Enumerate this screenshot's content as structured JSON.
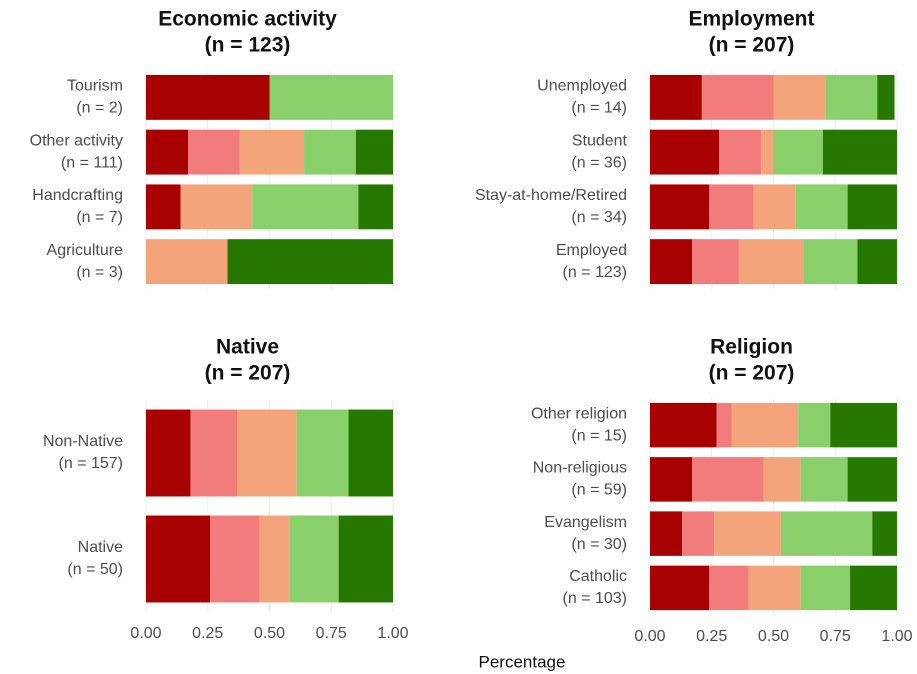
{
  "chart_data": [
    {
      "type": "bar",
      "orientation": "horizontal",
      "stacked": true,
      "title": "Economic activity",
      "subtitle": "(n = 123)",
      "categories": [
        "Tourism",
        "Other activity",
        "Handcrafting",
        "Agriculture"
      ],
      "category_counts": [
        "(n = 2)",
        "(n = 111)",
        "(n = 7)",
        "(n = 3)"
      ],
      "xlim": [
        0,
        1
      ],
      "series": [
        {
          "color": "#a80000",
          "values": [
            0.5,
            0.17,
            0.14,
            0
          ]
        },
        {
          "color": "#f27b7b",
          "values": [
            0,
            0.21,
            0,
            0
          ]
        },
        {
          "color": "#f4a47b",
          "values": [
            0,
            0.26,
            0.29,
            0.33
          ]
        },
        {
          "color": "#89cf6a",
          "values": [
            0.5,
            0.21,
            0.43,
            0
          ]
        },
        {
          "color": "#277800",
          "values": [
            0,
            0.15,
            0.14,
            0.67
          ]
        }
      ]
    },
    {
      "type": "bar",
      "orientation": "horizontal",
      "stacked": true,
      "title": "Employment",
      "subtitle": "(n = 207)",
      "categories": [
        "Unemployed",
        "Student",
        "Stay-at-home/Retired",
        "Employed"
      ],
      "category_counts": [
        "(n = 14)",
        "(n = 36)",
        "(n = 34)",
        "(n = 123)"
      ],
      "xlim": [
        0,
        1
      ],
      "series": [
        {
          "color": "#a80000",
          "values": [
            0.21,
            0.28,
            0.24,
            0.17
          ]
        },
        {
          "color": "#f27b7b",
          "values": [
            0.29,
            0.17,
            0.18,
            0.19
          ]
        },
        {
          "color": "#f4a47b",
          "values": [
            0.21,
            0.05,
            0.17,
            0.26
          ]
        },
        {
          "color": "#89cf6a",
          "values": [
            0.21,
            0.2,
            0.21,
            0.22
          ]
        },
        {
          "color": "#277800",
          "values": [
            0.07,
            0.3,
            0.2,
            0.16
          ]
        }
      ]
    },
    {
      "type": "bar",
      "orientation": "horizontal",
      "stacked": true,
      "title": "Native",
      "subtitle": "(n = 207)",
      "categories": [
        "Non-Native",
        "Native"
      ],
      "category_counts": [
        "(n = 157)",
        "(n = 50)"
      ],
      "xlim": [
        0,
        1
      ],
      "xticks": [
        {
          "value": 0,
          "label": "0.00"
        },
        {
          "value": 0.25,
          "label": "0.25"
        },
        {
          "value": 0.5,
          "label": "0.50"
        },
        {
          "value": 0.75,
          "label": "0.75"
        },
        {
          "value": 1,
          "label": "1.00"
        }
      ],
      "series": [
        {
          "color": "#a80000",
          "values": [
            0.18,
            0.26
          ]
        },
        {
          "color": "#f27b7b",
          "values": [
            0.19,
            0.2
          ]
        },
        {
          "color": "#f4a47b",
          "values": [
            0.24,
            0.12
          ]
        },
        {
          "color": "#89cf6a",
          "values": [
            0.21,
            0.2
          ]
        },
        {
          "color": "#277800",
          "values": [
            0.18,
            0.22
          ]
        }
      ]
    },
    {
      "type": "bar",
      "orientation": "horizontal",
      "stacked": true,
      "title": "Religion",
      "subtitle": "(n = 207)",
      "categories": [
        "Other religion",
        "Non-religious",
        "Evangelism",
        "Catholic"
      ],
      "category_counts": [
        "(n = 15)",
        "(n = 59)",
        "(n = 30)",
        "(n = 103)"
      ],
      "xlim": [
        0,
        1
      ],
      "xticks": [
        {
          "value": 0,
          "label": "0.00"
        },
        {
          "value": 0.25,
          "label": "0.25"
        },
        {
          "value": 0.5,
          "label": "0.50"
        },
        {
          "value": 0.75,
          "label": "0.75"
        },
        {
          "value": 1,
          "label": "1.00"
        }
      ],
      "series": [
        {
          "color": "#a80000",
          "values": [
            0.27,
            0.17,
            0.13,
            0.24
          ]
        },
        {
          "color": "#f27b7b",
          "values": [
            0.06,
            0.29,
            0.13,
            0.16
          ]
        },
        {
          "color": "#f4a47b",
          "values": [
            0.27,
            0.15,
            0.27,
            0.21
          ]
        },
        {
          "color": "#89cf6a",
          "values": [
            0.13,
            0.19,
            0.37,
            0.2
          ]
        },
        {
          "color": "#277800",
          "values": [
            0.27,
            0.2,
            0.1,
            0.19
          ]
        }
      ]
    }
  ],
  "xlabel": "Percentage"
}
